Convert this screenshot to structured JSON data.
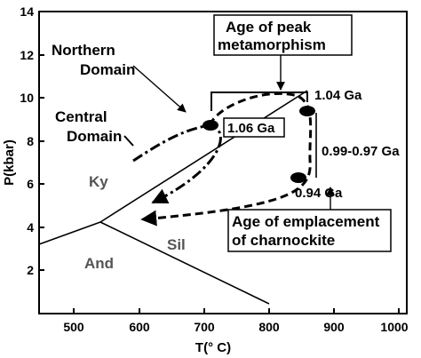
{
  "axes": {
    "x_label": "T(° C)",
    "y_label": "P(kbar)",
    "x_range": [
      450,
      1000
    ],
    "y_range": [
      0,
      14
    ],
    "x_ticks": [
      "500",
      "600",
      "700",
      "800",
      "900",
      "1000"
    ],
    "y_ticks": [
      "2",
      "4",
      "6",
      "8",
      "10",
      "12",
      "14"
    ]
  },
  "fields": {
    "ky": "Ky",
    "sil": "Sil",
    "and": "And"
  },
  "domains": {
    "northern": [
      "Northern",
      "Domain"
    ],
    "central": [
      "Central",
      "Domain"
    ]
  },
  "boxes": {
    "peak": [
      "Age of peak",
      "metamorphism"
    ],
    "emplacement": [
      "Age of emplacement",
      "of charnockite"
    ],
    "age_106": "1.06 Ga"
  },
  "ages": {
    "a104": "1.04 Ga",
    "range": "0.99-0.97 Ga",
    "a094": "0.94 Ga"
  },
  "colors": {
    "ink": "#000000",
    "field_grey": "#555555"
  }
}
